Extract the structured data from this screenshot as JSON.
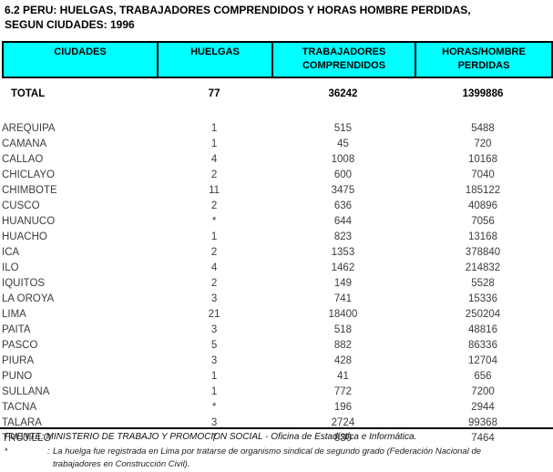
{
  "title": {
    "line1": "6.2  PERU: HUELGAS, TRABAJADORES COMPRENDIDOS Y HORAS HOMBRE PERDIDAS,",
    "line2": "SEGUN CIUDADES: 1996"
  },
  "colors": {
    "header_bg": "#00ffff",
    "border": "#000000",
    "body_text": "#3c3c3c"
  },
  "table": {
    "columns": [
      {
        "lines": [
          "CIUDADES"
        ]
      },
      {
        "lines": [
          "HUELGAS"
        ]
      },
      {
        "lines": [
          "TRABAJADORES",
          "COMPRENDIDOS"
        ]
      },
      {
        "lines": [
          "HORAS/HOMBRE",
          "PERDIDAS"
        ]
      }
    ],
    "total_row": {
      "city": "TOTAL",
      "strikes": "77",
      "workers": "36242",
      "hours": "1399886"
    },
    "rows": [
      {
        "city": "AREQUIPA",
        "strikes": "1",
        "workers": "515",
        "hours": "5488"
      },
      {
        "city": "CAMANA",
        "strikes": "1",
        "workers": "45",
        "hours": "720"
      },
      {
        "city": "CALLAO",
        "strikes": "4",
        "workers": "1008",
        "hours": "10168"
      },
      {
        "city": "CHICLAYO",
        "strikes": "2",
        "workers": "600",
        "hours": "7040"
      },
      {
        "city": "CHIMBOTE",
        "strikes": "11",
        "workers": "3475",
        "hours": "185122"
      },
      {
        "city": "CUSCO",
        "strikes": "2",
        "workers": "636",
        "hours": "40896"
      },
      {
        "city": "HUANUCO",
        "strikes": "*",
        "workers": "644",
        "hours": "7056"
      },
      {
        "city": "HUACHO",
        "strikes": "1",
        "workers": "823",
        "hours": "13168"
      },
      {
        "city": "ICA",
        "strikes": "2",
        "workers": "1353",
        "hours": "378840"
      },
      {
        "city": "ILO",
        "strikes": "4",
        "workers": "1462",
        "hours": "214832"
      },
      {
        "city": "IQUITOS",
        "strikes": "2",
        "workers": "149",
        "hours": "5528"
      },
      {
        "city": "LA OROYA",
        "strikes": "3",
        "workers": "741",
        "hours": "15336"
      },
      {
        "city": "LIMA",
        "strikes": "21",
        "workers": "18400",
        "hours": "250204"
      },
      {
        "city": "PAITA",
        "strikes": "3",
        "workers": "518",
        "hours": "48816"
      },
      {
        "city": "PASCO",
        "strikes": "5",
        "workers": "882",
        "hours": "86336"
      },
      {
        "city": "PIURA",
        "strikes": "3",
        "workers": "428",
        "hours": "12704"
      },
      {
        "city": "PUNO",
        "strikes": "1",
        "workers": "41",
        "hours": "656"
      },
      {
        "city": "SULLANA",
        "strikes": "1",
        "workers": "772",
        "hours": "7200"
      },
      {
        "city": "TACNA",
        "strikes": "*",
        "workers": "196",
        "hours": "2944"
      },
      {
        "city": "TALARA",
        "strikes": "3",
        "workers": "2724",
        "hours": "99368"
      },
      {
        "city": "TRUJILLO",
        "strikes": "7",
        "workers": "830",
        "hours": "7464"
      }
    ]
  },
  "footer": {
    "source": "FUENTE: MINISTERIO DE TRABAJO Y PROMOCION SOCIAL - Oficina de Estadística e Informática.",
    "note_marker": "*",
    "note_colon": ":",
    "note_line1": "La huelga fue registrada en Lima por tratarse de organismo sindical de segundo grado (Federación Nacional de",
    "note_line2": "trabajadores en Construcción Civil)."
  }
}
